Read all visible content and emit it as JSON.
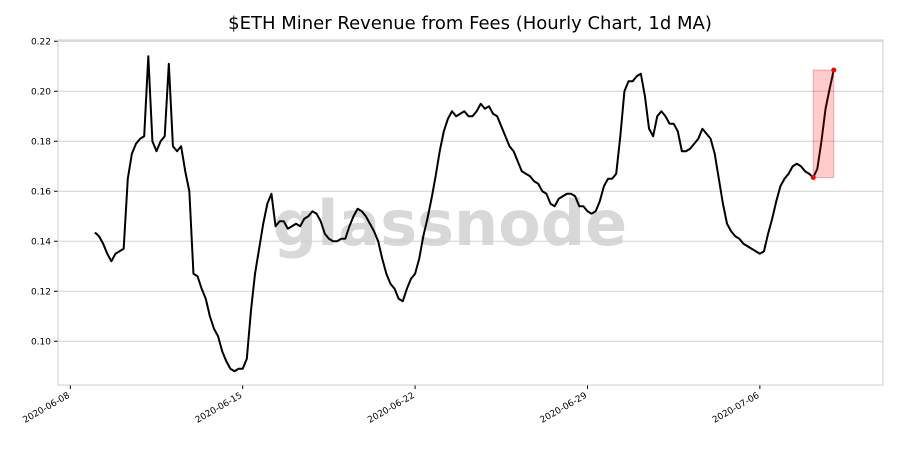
{
  "chart_data": {
    "type": "line",
    "title": "$ETH Miner Revenue from Fees (Hourly Chart, 1d MA)",
    "watermark": "glassnode",
    "x": [
      "2020-06-09T00:00",
      "2020-06-09T04:00",
      "2020-06-09T08:00",
      "2020-06-09T12:00",
      "2020-06-09T16:00",
      "2020-06-09T20:00",
      "2020-06-10T00:00",
      "2020-06-10T04:00",
      "2020-06-10T08:00",
      "2020-06-10T12:00",
      "2020-06-10T16:00",
      "2020-06-10T20:00",
      "2020-06-11T00:00",
      "2020-06-11T04:00",
      "2020-06-11T08:00",
      "2020-06-11T12:00",
      "2020-06-11T16:00",
      "2020-06-11T20:00",
      "2020-06-12T00:00",
      "2020-06-12T04:00",
      "2020-06-12T08:00",
      "2020-06-12T12:00",
      "2020-06-12T16:00",
      "2020-06-12T20:00",
      "2020-06-13T00:00",
      "2020-06-13T04:00",
      "2020-06-13T08:00",
      "2020-06-13T12:00",
      "2020-06-13T16:00",
      "2020-06-13T20:00",
      "2020-06-14T00:00",
      "2020-06-14T04:00",
      "2020-06-14T08:00",
      "2020-06-14T12:00",
      "2020-06-14T16:00",
      "2020-06-14T20:00",
      "2020-06-15T00:00",
      "2020-06-15T04:00",
      "2020-06-15T08:00",
      "2020-06-15T12:00",
      "2020-06-15T16:00",
      "2020-06-15T20:00",
      "2020-06-16T00:00",
      "2020-06-16T04:00",
      "2020-06-16T08:00",
      "2020-06-16T12:00",
      "2020-06-16T16:00",
      "2020-06-16T20:00",
      "2020-06-17T00:00",
      "2020-06-17T04:00",
      "2020-06-17T08:00",
      "2020-06-17T12:00",
      "2020-06-17T16:00",
      "2020-06-17T20:00",
      "2020-06-18T00:00",
      "2020-06-18T04:00",
      "2020-06-18T08:00",
      "2020-06-18T12:00",
      "2020-06-18T16:00",
      "2020-06-18T20:00",
      "2020-06-19T00:00",
      "2020-06-19T04:00",
      "2020-06-19T08:00",
      "2020-06-19T12:00",
      "2020-06-19T16:00",
      "2020-06-19T20:00",
      "2020-06-20T00:00",
      "2020-06-20T04:00",
      "2020-06-20T08:00",
      "2020-06-20T12:00",
      "2020-06-20T16:00",
      "2020-06-20T20:00",
      "2020-06-21T00:00",
      "2020-06-21T04:00",
      "2020-06-21T08:00",
      "2020-06-21T12:00",
      "2020-06-21T16:00",
      "2020-06-21T20:00",
      "2020-06-22T00:00",
      "2020-06-22T04:00",
      "2020-06-22T08:00",
      "2020-06-22T12:00",
      "2020-06-22T16:00",
      "2020-06-22T20:00",
      "2020-06-23T00:00",
      "2020-06-23T04:00",
      "2020-06-23T08:00",
      "2020-06-23T12:00",
      "2020-06-23T16:00",
      "2020-06-23T20:00",
      "2020-06-24T00:00",
      "2020-06-24T04:00",
      "2020-06-24T08:00",
      "2020-06-24T12:00",
      "2020-06-24T16:00",
      "2020-06-24T20:00",
      "2020-06-25T00:00",
      "2020-06-25T04:00",
      "2020-06-25T08:00",
      "2020-06-25T12:00",
      "2020-06-25T16:00",
      "2020-06-25T20:00",
      "2020-06-26T00:00",
      "2020-06-26T04:00",
      "2020-06-26T08:00",
      "2020-06-26T12:00",
      "2020-06-26T16:00",
      "2020-06-26T20:00",
      "2020-06-27T00:00",
      "2020-06-27T04:00",
      "2020-06-27T08:00",
      "2020-06-27T12:00",
      "2020-06-27T16:00",
      "2020-06-27T20:00",
      "2020-06-28T00:00",
      "2020-06-28T04:00",
      "2020-06-28T08:00",
      "2020-06-28T12:00",
      "2020-06-28T16:00",
      "2020-06-28T20:00",
      "2020-06-29T00:00",
      "2020-06-29T04:00",
      "2020-06-29T08:00",
      "2020-06-29T12:00",
      "2020-06-29T16:00",
      "2020-06-29T20:00",
      "2020-06-30T00:00",
      "2020-06-30T04:00",
      "2020-06-30T08:00",
      "2020-06-30T12:00",
      "2020-06-30T16:00",
      "2020-06-30T20:00",
      "2020-07-01T00:00",
      "2020-07-01T04:00",
      "2020-07-01T08:00",
      "2020-07-01T12:00",
      "2020-07-01T16:00",
      "2020-07-01T20:00",
      "2020-07-02T00:00",
      "2020-07-02T04:00",
      "2020-07-02T08:00",
      "2020-07-02T12:00",
      "2020-07-02T16:00",
      "2020-07-02T20:00",
      "2020-07-03T00:00",
      "2020-07-03T04:00",
      "2020-07-03T08:00",
      "2020-07-03T12:00",
      "2020-07-03T16:00",
      "2020-07-03T20:00",
      "2020-07-04T00:00",
      "2020-07-04T04:00",
      "2020-07-04T08:00",
      "2020-07-04T12:00",
      "2020-07-04T16:00",
      "2020-07-04T20:00",
      "2020-07-05T00:00",
      "2020-07-05T04:00",
      "2020-07-05T08:00",
      "2020-07-05T12:00",
      "2020-07-05T16:00",
      "2020-07-05T20:00",
      "2020-07-06T00:00",
      "2020-07-06T04:00",
      "2020-07-06T08:00",
      "2020-07-06T12:00",
      "2020-07-06T16:00",
      "2020-07-06T20:00",
      "2020-07-07T00:00",
      "2020-07-07T04:00",
      "2020-07-07T08:00",
      "2020-07-07T12:00",
      "2020-07-07T16:00",
      "2020-07-07T20:00",
      "2020-07-08T00:00",
      "2020-07-08T04:00",
      "2020-07-08T08:00",
      "2020-07-08T12:00",
      "2020-07-08T16:00",
      "2020-07-08T20:00",
      "2020-07-09T00:00"
    ],
    "series": [
      {
        "color": "#000000",
        "values": [
          0.1435,
          0.142,
          0.139,
          0.135,
          0.132,
          0.135,
          0.136,
          0.137,
          0.165,
          0.175,
          0.179,
          0.181,
          0.182,
          0.214,
          0.18,
          0.176,
          0.18,
          0.182,
          0.211,
          0.178,
          0.176,
          0.178,
          0.168,
          0.16,
          0.127,
          0.126,
          0.121,
          0.117,
          0.11,
          0.105,
          0.102,
          0.096,
          0.092,
          0.089,
          0.088,
          0.089,
          0.089,
          0.093,
          0.112,
          0.127,
          0.137,
          0.147,
          0.155,
          0.159,
          0.146,
          0.148,
          0.148,
          0.145,
          0.146,
          0.147,
          0.146,
          0.149,
          0.15,
          0.152,
          0.151,
          0.148,
          0.143,
          0.141,
          0.14,
          0.14,
          0.141,
          0.141,
          0.146,
          0.15,
          0.153,
          0.152,
          0.15,
          0.147,
          0.144,
          0.14,
          0.133,
          0.127,
          0.123,
          0.121,
          0.117,
          0.116,
          0.121,
          0.125,
          0.127,
          0.133,
          0.142,
          0.149,
          0.157,
          0.166,
          0.176,
          0.184,
          0.189,
          0.192,
          0.19,
          0.191,
          0.192,
          0.19,
          0.19,
          0.192,
          0.195,
          0.193,
          0.194,
          0.191,
          0.19,
          0.186,
          0.182,
          0.178,
          0.176,
          0.172,
          0.168,
          0.167,
          0.166,
          0.164,
          0.163,
          0.16,
          0.159,
          0.155,
          0.154,
          0.157,
          0.158,
          0.159,
          0.159,
          0.158,
          0.154,
          0.154,
          0.152,
          0.151,
          0.152,
          0.156,
          0.162,
          0.165,
          0.165,
          0.167,
          0.182,
          0.2,
          0.204,
          0.204,
          0.206,
          0.207,
          0.198,
          0.185,
          0.182,
          0.19,
          0.192,
          0.19,
          0.187,
          0.187,
          0.184,
          0.176,
          0.176,
          0.177,
          0.179,
          0.181,
          0.185,
          0.183,
          0.181,
          0.175,
          0.165,
          0.155,
          0.147,
          0.144,
          0.142,
          0.141,
          0.139,
          0.138,
          0.137,
          0.136,
          0.135,
          0.136,
          0.143,
          0.149,
          0.156,
          0.162,
          0.165,
          0.167,
          0.17,
          0.171,
          0.17,
          0.168,
          0.167,
          0.1655,
          0.169,
          0.18,
          0.193,
          0.201,
          0.2085
        ]
      }
    ],
    "highlight": {
      "x": [
        "2020-07-08T04:00",
        "2020-07-09T00:00"
      ],
      "y": [
        0.1655,
        0.2085
      ],
      "color": "#ff0000"
    },
    "xlim": [
      "2020-06-07T12:00",
      "2020-07-11T00:00"
    ],
    "xticks": [
      "2020-06-08",
      "2020-06-15",
      "2020-06-22",
      "2020-06-29",
      "2020-07-06"
    ],
    "ylim": [
      0.0825,
      0.2205
    ],
    "yticks": [
      {
        "value": 0.1,
        "label": "0.10"
      },
      0.12,
      0.14,
      0.16,
      0.18,
      {
        "value": 0.2,
        "label": "0.20"
      },
      0.22
    ],
    "grid": true
  }
}
